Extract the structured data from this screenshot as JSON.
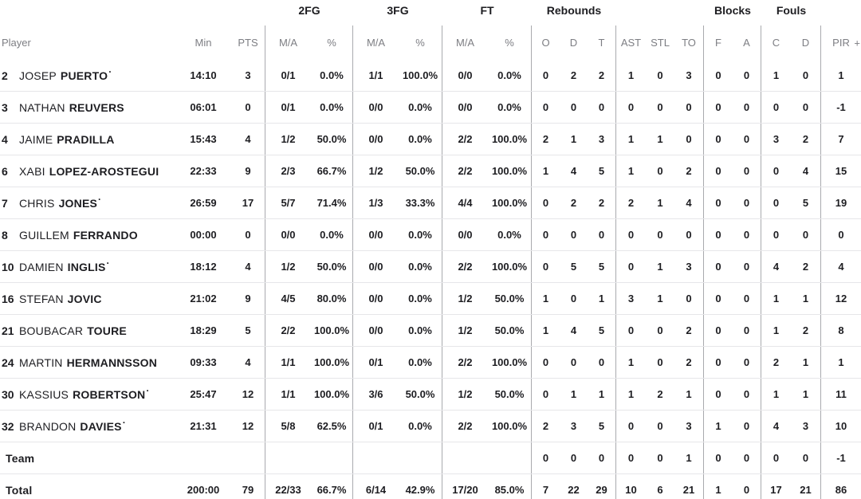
{
  "table": {
    "group_headers": {
      "fg2": "2FG",
      "fg3": "3FG",
      "ft": "FT",
      "rebounds": "Rebounds",
      "blocks": "Blocks",
      "fouls": "Fouls"
    },
    "col_headers": {
      "player": "Player",
      "min": "Min",
      "pts": "PTS",
      "ma": "M/A",
      "pct": "%",
      "reb_o": "O",
      "reb_d": "D",
      "reb_t": "T",
      "ast": "AST",
      "stl": "STL",
      "to": "TO",
      "blk_f": "F",
      "blk_a": "A",
      "foul_c": "C",
      "foul_d": "D",
      "pir": "PIR",
      "plus": "+"
    },
    "starter_mark": "·"
  },
  "colors": {
    "text": "#1d1d21",
    "muted": "#7d7e83",
    "grid_horizontal": "#e6e6e9",
    "grid_vertical": "#a9aaae",
    "background": "#ffffff"
  },
  "rows": [
    {
      "type": "player",
      "num": "2",
      "first": "JOSEP",
      "last": "PUERTO",
      "starter": true,
      "min": "14:10",
      "pts": "3",
      "fg2_ma": "0/1",
      "fg2_pct": "0.0%",
      "fg3_ma": "1/1",
      "fg3_pct": "100.0%",
      "ft_ma": "0/0",
      "ft_pct": "0.0%",
      "reb_o": "0",
      "reb_d": "2",
      "reb_t": "2",
      "ast": "1",
      "stl": "0",
      "to": "3",
      "blk_f": "0",
      "blk_a": "0",
      "foul_c": "1",
      "foul_d": "0",
      "pir": "1"
    },
    {
      "type": "player",
      "num": "3",
      "first": "NATHAN",
      "last": "REUVERS",
      "starter": false,
      "min": "06:01",
      "pts": "0",
      "fg2_ma": "0/1",
      "fg2_pct": "0.0%",
      "fg3_ma": "0/0",
      "fg3_pct": "0.0%",
      "ft_ma": "0/0",
      "ft_pct": "0.0%",
      "reb_o": "0",
      "reb_d": "0",
      "reb_t": "0",
      "ast": "0",
      "stl": "0",
      "to": "0",
      "blk_f": "0",
      "blk_a": "0",
      "foul_c": "0",
      "foul_d": "0",
      "pir": "-1"
    },
    {
      "type": "player",
      "num": "4",
      "first": "JAIME",
      "last": "PRADILLA",
      "starter": false,
      "min": "15:43",
      "pts": "4",
      "fg2_ma": "1/2",
      "fg2_pct": "50.0%",
      "fg3_ma": "0/0",
      "fg3_pct": "0.0%",
      "ft_ma": "2/2",
      "ft_pct": "100.0%",
      "reb_o": "2",
      "reb_d": "1",
      "reb_t": "3",
      "ast": "1",
      "stl": "1",
      "to": "0",
      "blk_f": "0",
      "blk_a": "0",
      "foul_c": "3",
      "foul_d": "2",
      "pir": "7"
    },
    {
      "type": "player",
      "num": "6",
      "first": "XABI",
      "last": "LOPEZ-AROSTEGUI",
      "starter": false,
      "min": "22:33",
      "pts": "9",
      "fg2_ma": "2/3",
      "fg2_pct": "66.7%",
      "fg3_ma": "1/2",
      "fg3_pct": "50.0%",
      "ft_ma": "2/2",
      "ft_pct": "100.0%",
      "reb_o": "1",
      "reb_d": "4",
      "reb_t": "5",
      "ast": "1",
      "stl": "0",
      "to": "2",
      "blk_f": "0",
      "blk_a": "0",
      "foul_c": "0",
      "foul_d": "4",
      "pir": "15"
    },
    {
      "type": "player",
      "num": "7",
      "first": "CHRIS",
      "last": "JONES",
      "starter": true,
      "min": "26:59",
      "pts": "17",
      "fg2_ma": "5/7",
      "fg2_pct": "71.4%",
      "fg3_ma": "1/3",
      "fg3_pct": "33.3%",
      "ft_ma": "4/4",
      "ft_pct": "100.0%",
      "reb_o": "0",
      "reb_d": "2",
      "reb_t": "2",
      "ast": "2",
      "stl": "1",
      "to": "4",
      "blk_f": "0",
      "blk_a": "0",
      "foul_c": "0",
      "foul_d": "5",
      "pir": "19"
    },
    {
      "type": "player",
      "num": "8",
      "first": "GUILLEM",
      "last": "FERRANDO",
      "starter": false,
      "min": "00:00",
      "pts": "0",
      "fg2_ma": "0/0",
      "fg2_pct": "0.0%",
      "fg3_ma": "0/0",
      "fg3_pct": "0.0%",
      "ft_ma": "0/0",
      "ft_pct": "0.0%",
      "reb_o": "0",
      "reb_d": "0",
      "reb_t": "0",
      "ast": "0",
      "stl": "0",
      "to": "0",
      "blk_f": "0",
      "blk_a": "0",
      "foul_c": "0",
      "foul_d": "0",
      "pir": "0"
    },
    {
      "type": "player",
      "num": "10",
      "first": "DAMIEN",
      "last": "INGLIS",
      "starter": true,
      "min": "18:12",
      "pts": "4",
      "fg2_ma": "1/2",
      "fg2_pct": "50.0%",
      "fg3_ma": "0/0",
      "fg3_pct": "0.0%",
      "ft_ma": "2/2",
      "ft_pct": "100.0%",
      "reb_o": "0",
      "reb_d": "5",
      "reb_t": "5",
      "ast": "0",
      "stl": "1",
      "to": "3",
      "blk_f": "0",
      "blk_a": "0",
      "foul_c": "4",
      "foul_d": "2",
      "pir": "4"
    },
    {
      "type": "player",
      "num": "16",
      "first": "STEFAN",
      "last": "JOVIC",
      "starter": false,
      "min": "21:02",
      "pts": "9",
      "fg2_ma": "4/5",
      "fg2_pct": "80.0%",
      "fg3_ma": "0/0",
      "fg3_pct": "0.0%",
      "ft_ma": "1/2",
      "ft_pct": "50.0%",
      "reb_o": "1",
      "reb_d": "0",
      "reb_t": "1",
      "ast": "3",
      "stl": "1",
      "to": "0",
      "blk_f": "0",
      "blk_a": "0",
      "foul_c": "1",
      "foul_d": "1",
      "pir": "12"
    },
    {
      "type": "player",
      "num": "21",
      "first": "BOUBACAR",
      "last": "TOURE",
      "starter": false,
      "min": "18:29",
      "pts": "5",
      "fg2_ma": "2/2",
      "fg2_pct": "100.0%",
      "fg3_ma": "0/0",
      "fg3_pct": "0.0%",
      "ft_ma": "1/2",
      "ft_pct": "50.0%",
      "reb_o": "1",
      "reb_d": "4",
      "reb_t": "5",
      "ast": "0",
      "stl": "0",
      "to": "2",
      "blk_f": "0",
      "blk_a": "0",
      "foul_c": "1",
      "foul_d": "2",
      "pir": "8"
    },
    {
      "type": "player",
      "num": "24",
      "first": "MARTIN",
      "last": "HERMANNSSON",
      "starter": false,
      "min": "09:33",
      "pts": "4",
      "fg2_ma": "1/1",
      "fg2_pct": "100.0%",
      "fg3_ma": "0/1",
      "fg3_pct": "0.0%",
      "ft_ma": "2/2",
      "ft_pct": "100.0%",
      "reb_o": "0",
      "reb_d": "0",
      "reb_t": "0",
      "ast": "1",
      "stl": "0",
      "to": "2",
      "blk_f": "0",
      "blk_a": "0",
      "foul_c": "2",
      "foul_d": "1",
      "pir": "1"
    },
    {
      "type": "player",
      "num": "30",
      "first": "KASSIUS",
      "last": "ROBERTSON",
      "starter": true,
      "min": "25:47",
      "pts": "12",
      "fg2_ma": "1/1",
      "fg2_pct": "100.0%",
      "fg3_ma": "3/6",
      "fg3_pct": "50.0%",
      "ft_ma": "1/2",
      "ft_pct": "50.0%",
      "reb_o": "0",
      "reb_d": "1",
      "reb_t": "1",
      "ast": "1",
      "stl": "2",
      "to": "1",
      "blk_f": "0",
      "blk_a": "0",
      "foul_c": "1",
      "foul_d": "1",
      "pir": "11"
    },
    {
      "type": "player",
      "num": "32",
      "first": "BRANDON",
      "last": "DAVIES",
      "starter": true,
      "min": "21:31",
      "pts": "12",
      "fg2_ma": "5/8",
      "fg2_pct": "62.5%",
      "fg3_ma": "0/1",
      "fg3_pct": "0.0%",
      "ft_ma": "2/2",
      "ft_pct": "100.0%",
      "reb_o": "2",
      "reb_d": "3",
      "reb_t": "5",
      "ast": "0",
      "stl": "0",
      "to": "3",
      "blk_f": "1",
      "blk_a": "0",
      "foul_c": "4",
      "foul_d": "3",
      "pir": "10"
    },
    {
      "type": "team",
      "num": "",
      "first": "",
      "last": "Team",
      "starter": false,
      "min": "",
      "pts": "",
      "fg2_ma": "",
      "fg2_pct": "",
      "fg3_ma": "",
      "fg3_pct": "",
      "ft_ma": "",
      "ft_pct": "",
      "reb_o": "0",
      "reb_d": "0",
      "reb_t": "0",
      "ast": "0",
      "stl": "0",
      "to": "1",
      "blk_f": "0",
      "blk_a": "0",
      "foul_c": "0",
      "foul_d": "0",
      "pir": "-1"
    },
    {
      "type": "total",
      "num": "",
      "first": "",
      "last": "Total",
      "starter": false,
      "min": "200:00",
      "pts": "79",
      "fg2_ma": "22/33",
      "fg2_pct": "66.7%",
      "fg3_ma": "6/14",
      "fg3_pct": "42.9%",
      "ft_ma": "17/20",
      "ft_pct": "85.0%",
      "reb_o": "7",
      "reb_d": "22",
      "reb_t": "29",
      "ast": "10",
      "stl": "6",
      "to": "21",
      "blk_f": "1",
      "blk_a": "0",
      "foul_c": "17",
      "foul_d": "21",
      "pir": "86"
    }
  ]
}
